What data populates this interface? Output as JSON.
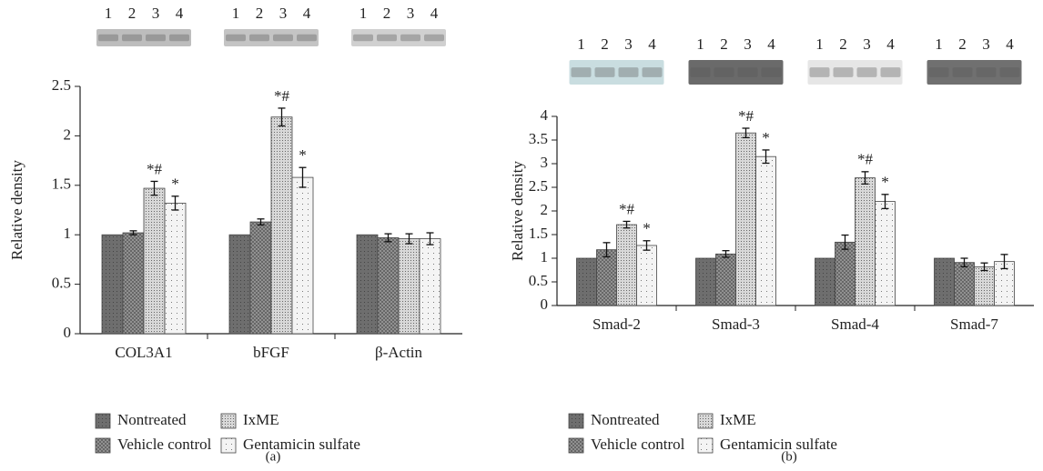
{
  "chart_data": [
    {
      "type": "bar",
      "panel_label": "(a)",
      "y_label": "Relative density",
      "categories": [
        "COL3A1",
        "bFGF",
        "β-Actin"
      ],
      "blot_lanes": [
        [
          "1",
          "2",
          "3",
          "4"
        ],
        [
          "1",
          "2",
          "3",
          "4"
        ],
        [
          "1",
          "2",
          "3",
          "4"
        ]
      ],
      "ylim": [
        0,
        2.5
      ],
      "yticks": [
        0,
        0.5,
        1,
        1.5,
        2,
        2.5
      ],
      "series": [
        {
          "name": "Nontreated",
          "color": "#6e6e6e",
          "values": [
            1,
            1,
            1
          ]
        },
        {
          "name": "Vehicle control",
          "color": "#9a9a9a",
          "values": [
            1.02,
            1.13,
            0.97
          ],
          "errors": [
            0.02,
            0.03,
            0.04
          ]
        },
        {
          "name": "IxME",
          "color": "#d8d8d8",
          "values": [
            1.47,
            2.19,
            0.96
          ],
          "errors": [
            0.07,
            0.09,
            0.05
          ],
          "significance": [
            "*#",
            "*#",
            null
          ]
        },
        {
          "name": "Gentamicin sulfate",
          "color": "#f4f4f4",
          "values": [
            1.32,
            1.58,
            0.96
          ],
          "errors": [
            0.07,
            0.1,
            0.06
          ],
          "significance": [
            "*",
            "*",
            null
          ]
        }
      ]
    },
    {
      "type": "bar",
      "panel_label": "(b)",
      "y_label": "Relative density",
      "categories": [
        "Smad-2",
        "Smad-3",
        "Smad-4",
        "Smad-7"
      ],
      "blot_lanes": [
        [
          "1",
          "2",
          "3",
          "4"
        ],
        [
          "1",
          "2",
          "3",
          "4"
        ],
        [
          "1",
          "2",
          "3",
          "4"
        ],
        [
          "1",
          "2",
          "3",
          "4"
        ]
      ],
      "ylim": [
        0,
        4
      ],
      "yticks": [
        0,
        0.5,
        1,
        1.5,
        2,
        2.5,
        3,
        3.5,
        4
      ],
      "series": [
        {
          "name": "Nontreated",
          "color": "#6e6e6e",
          "values": [
            1,
            1,
            1,
            1
          ]
        },
        {
          "name": "Vehicle control",
          "color": "#9a9a9a",
          "values": [
            1.18,
            1.09,
            1.34,
            0.91
          ],
          "errors": [
            0.15,
            0.07,
            0.15,
            0.09
          ]
        },
        {
          "name": "IxME",
          "color": "#d8d8d8",
          "values": [
            1.71,
            3.65,
            2.7,
            0.82
          ],
          "errors": [
            0.07,
            0.1,
            0.13,
            0.08
          ],
          "significance": [
            "*#",
            "*#",
            "*#",
            null
          ]
        },
        {
          "name": "Gentamicin sulfate",
          "color": "#f4f4f4",
          "values": [
            1.27,
            3.15,
            2.2,
            0.93
          ],
          "errors": [
            0.1,
            0.14,
            0.15,
            0.15
          ],
          "significance": [
            "*",
            "*",
            "*",
            null
          ]
        }
      ]
    }
  ]
}
